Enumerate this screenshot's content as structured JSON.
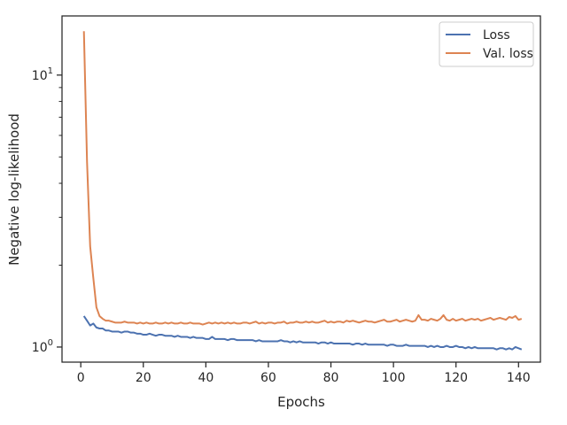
{
  "chart_data": {
    "type": "line",
    "title": "",
    "xlabel": "Epochs",
    "ylabel": "Negative log-likelihood",
    "yscale": "log",
    "xlim": [
      -6,
      147
    ],
    "ylim": [
      0.88,
      16.5
    ],
    "x_ticks": [
      0,
      20,
      40,
      60,
      80,
      100,
      120,
      140
    ],
    "x_tick_labels": [
      "0",
      "20",
      "40",
      "60",
      "80",
      "100",
      "120",
      "140"
    ],
    "y_major_ticks": [
      1,
      10
    ],
    "y_major_labels": [
      {
        "base": "10",
        "exp": "0"
      },
      {
        "base": "10",
        "exp": "1"
      }
    ],
    "y_minor_ticks": [
      2,
      3,
      4,
      5,
      6,
      7,
      8,
      9
    ],
    "grid": false,
    "legend_position": "top-right",
    "series": [
      {
        "name": "Loss",
        "color": "#4c72b0",
        "x_start": 1,
        "values": [
          1.3,
          1.25,
          1.2,
          1.22,
          1.18,
          1.17,
          1.17,
          1.15,
          1.15,
          1.14,
          1.14,
          1.14,
          1.13,
          1.14,
          1.14,
          1.13,
          1.13,
          1.12,
          1.12,
          1.11,
          1.11,
          1.12,
          1.11,
          1.1,
          1.11,
          1.11,
          1.1,
          1.1,
          1.1,
          1.09,
          1.1,
          1.09,
          1.09,
          1.09,
          1.08,
          1.09,
          1.08,
          1.08,
          1.08,
          1.07,
          1.07,
          1.09,
          1.07,
          1.07,
          1.07,
          1.07,
          1.06,
          1.07,
          1.07,
          1.06,
          1.06,
          1.06,
          1.06,
          1.06,
          1.06,
          1.05,
          1.06,
          1.05,
          1.05,
          1.05,
          1.05,
          1.05,
          1.05,
          1.06,
          1.05,
          1.05,
          1.04,
          1.05,
          1.04,
          1.05,
          1.04,
          1.04,
          1.04,
          1.04,
          1.04,
          1.03,
          1.04,
          1.04,
          1.03,
          1.04,
          1.03,
          1.03,
          1.03,
          1.03,
          1.03,
          1.03,
          1.02,
          1.03,
          1.03,
          1.02,
          1.03,
          1.02,
          1.02,
          1.02,
          1.02,
          1.02,
          1.02,
          1.01,
          1.02,
          1.02,
          1.01,
          1.01,
          1.01,
          1.02,
          1.01,
          1.01,
          1.01,
          1.01,
          1.01,
          1.01,
          1.0,
          1.01,
          1.0,
          1.01,
          1.0,
          1.0,
          1.01,
          1.0,
          1.0,
          1.01,
          1.0,
          1.0,
          0.99,
          1.0,
          0.99,
          1.0,
          0.99,
          0.99,
          0.99,
          0.99,
          0.99,
          0.99,
          0.98,
          0.99,
          0.99,
          0.98,
          0.99,
          0.98,
          1.0,
          0.99,
          0.98
        ]
      },
      {
        "name": "Val. loss",
        "color": "#dd8452",
        "x_start": 1,
        "values": [
          14.5,
          4.8,
          2.35,
          1.8,
          1.4,
          1.3,
          1.27,
          1.25,
          1.25,
          1.24,
          1.23,
          1.23,
          1.23,
          1.24,
          1.23,
          1.23,
          1.23,
          1.22,
          1.23,
          1.22,
          1.23,
          1.22,
          1.22,
          1.23,
          1.22,
          1.22,
          1.23,
          1.22,
          1.23,
          1.22,
          1.22,
          1.23,
          1.22,
          1.22,
          1.23,
          1.22,
          1.22,
          1.22,
          1.21,
          1.22,
          1.23,
          1.22,
          1.23,
          1.22,
          1.23,
          1.22,
          1.23,
          1.22,
          1.23,
          1.22,
          1.22,
          1.23,
          1.23,
          1.22,
          1.23,
          1.24,
          1.22,
          1.23,
          1.22,
          1.23,
          1.23,
          1.22,
          1.23,
          1.23,
          1.24,
          1.22,
          1.23,
          1.23,
          1.24,
          1.23,
          1.23,
          1.24,
          1.23,
          1.24,
          1.23,
          1.23,
          1.24,
          1.25,
          1.23,
          1.24,
          1.23,
          1.24,
          1.24,
          1.23,
          1.25,
          1.24,
          1.25,
          1.24,
          1.23,
          1.24,
          1.25,
          1.24,
          1.24,
          1.23,
          1.24,
          1.25,
          1.26,
          1.24,
          1.24,
          1.25,
          1.26,
          1.24,
          1.25,
          1.26,
          1.25,
          1.24,
          1.25,
          1.31,
          1.26,
          1.26,
          1.25,
          1.27,
          1.26,
          1.25,
          1.27,
          1.31,
          1.26,
          1.25,
          1.27,
          1.25,
          1.26,
          1.27,
          1.25,
          1.26,
          1.27,
          1.26,
          1.27,
          1.25,
          1.26,
          1.27,
          1.28,
          1.26,
          1.27,
          1.28,
          1.27,
          1.26,
          1.29,
          1.28,
          1.3,
          1.26,
          1.27
        ]
      }
    ]
  }
}
